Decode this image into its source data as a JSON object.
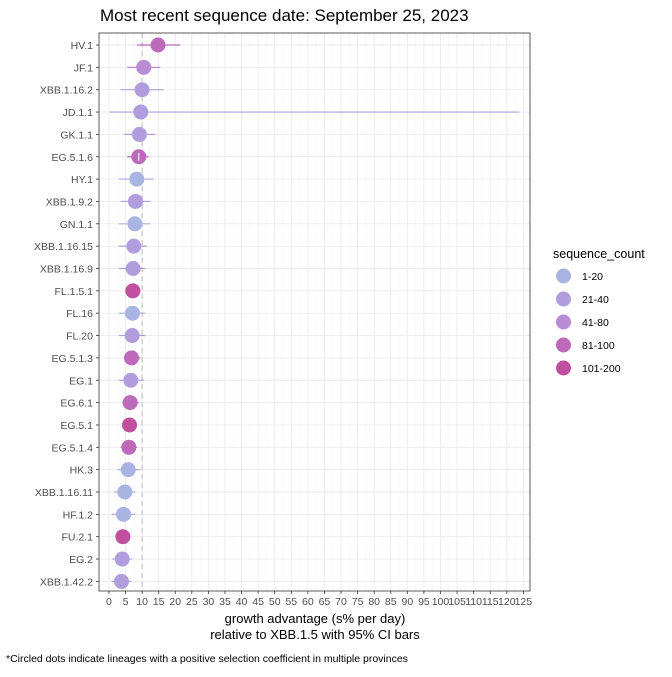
{
  "chart_data": {
    "type": "scatter",
    "title": "Most recent sequence date: September 25, 2023",
    "xlabel_line1": "growth advantage (s% per day)",
    "xlabel_line2": "relative to  XBB.1.5  with 95% CI bars",
    "footnote": "*Circled dots indicate lineages with a positive selection coefficient in multiple provinces",
    "xlim": [
      -3,
      127
    ],
    "x_ticks": [
      0,
      5,
      10,
      15,
      20,
      25,
      30,
      35,
      40,
      45,
      50,
      55,
      60,
      65,
      70,
      75,
      80,
      85,
      90,
      95,
      100,
      105,
      110,
      115,
      120,
      125
    ],
    "reference_line": 10,
    "grid": true,
    "legend": {
      "title": "sequence_count",
      "position": "right",
      "items": [
        {
          "label": "1-20",
          "color": "#aab4e2"
        },
        {
          "label": "21-40",
          "color": "#b19ddd"
        },
        {
          "label": "41-80",
          "color": "#b98bd4"
        },
        {
          "label": "81-100",
          "color": "#bc6ab9"
        },
        {
          "label": "101-200",
          "color": "#c0509f"
        }
      ]
    },
    "points": [
      {
        "lineage": "HV.1",
        "x": 14.8,
        "lo": 8.5,
        "hi": 21.5,
        "count": "81-100"
      },
      {
        "lineage": "JF.1",
        "x": 10.5,
        "lo": 5.5,
        "hi": 15.5,
        "count": "41-80"
      },
      {
        "lineage": "XBB.1.16.2",
        "x": 10.0,
        "lo": 3.5,
        "hi": 16.5,
        "count": "21-40"
      },
      {
        "lineage": "JD.1.1",
        "x": 9.6,
        "lo": 0.2,
        "hi": 123.8,
        "count": "21-40"
      },
      {
        "lineage": "GK.1.1",
        "x": 9.2,
        "lo": 4.5,
        "hi": 14.0,
        "count": "21-40"
      },
      {
        "lineage": "EG.5.1.6",
        "x": 9.0,
        "lo": 5.5,
        "hi": 12.0,
        "count": "81-100",
        "circled": true
      },
      {
        "lineage": "HY.1",
        "x": 8.4,
        "lo": 3.0,
        "hi": 13.5,
        "count": "1-20"
      },
      {
        "lineage": "XBB.1.9.2",
        "x": 8.0,
        "lo": 3.5,
        "hi": 12.5,
        "count": "21-40"
      },
      {
        "lineage": "GN.1.1",
        "x": 7.8,
        "lo": 3.0,
        "hi": 12.5,
        "count": "1-20"
      },
      {
        "lineage": "XBB.1.16.15",
        "x": 7.5,
        "lo": 3.0,
        "hi": 11.5,
        "count": "21-40"
      },
      {
        "lineage": "XBB.1.16.9",
        "x": 7.3,
        "lo": 3.0,
        "hi": 11.0,
        "count": "21-40"
      },
      {
        "lineage": "FL.1.5.1",
        "x": 7.2,
        "lo": 5.0,
        "hi": 9.5,
        "count": "101-200"
      },
      {
        "lineage": "FL.16",
        "x": 7.1,
        "lo": 3.0,
        "hi": 11.0,
        "count": "1-20"
      },
      {
        "lineage": "FL.20",
        "x": 7.0,
        "lo": 3.0,
        "hi": 11.0,
        "count": "21-40"
      },
      {
        "lineage": "EG.5.1.3",
        "x": 6.8,
        "lo": 4.5,
        "hi": 9.5,
        "count": "81-100"
      },
      {
        "lineage": "EG.1",
        "x": 6.6,
        "lo": 3.0,
        "hi": 10.5,
        "count": "21-40"
      },
      {
        "lineage": "EG.6.1",
        "x": 6.4,
        "lo": 4.0,
        "hi": 9.0,
        "count": "81-100"
      },
      {
        "lineage": "EG.5.1",
        "x": 6.2,
        "lo": 5.0,
        "hi": 7.5,
        "count": "101-200"
      },
      {
        "lineage": "EG.5.1.4",
        "x": 6.0,
        "lo": 3.5,
        "hi": 8.5,
        "count": "81-100"
      },
      {
        "lineage": "HK.3",
        "x": 5.8,
        "lo": 2.5,
        "hi": 9.5,
        "count": "1-20"
      },
      {
        "lineage": "XBB.1.16.11",
        "x": 4.8,
        "lo": 1.5,
        "hi": 8.0,
        "count": "1-20"
      },
      {
        "lineage": "HF.1.2",
        "x": 4.4,
        "lo": 0.8,
        "hi": 8.0,
        "count": "1-20"
      },
      {
        "lineage": "FU.2.1",
        "x": 4.2,
        "lo": 2.8,
        "hi": 5.8,
        "count": "101-200"
      },
      {
        "lineage": "EG.2",
        "x": 4.0,
        "lo": 1.0,
        "hi": 7.0,
        "count": "21-40"
      },
      {
        "lineage": "XBB.1.42.2",
        "x": 3.8,
        "lo": 0.8,
        "hi": 6.8,
        "count": "21-40"
      }
    ]
  }
}
